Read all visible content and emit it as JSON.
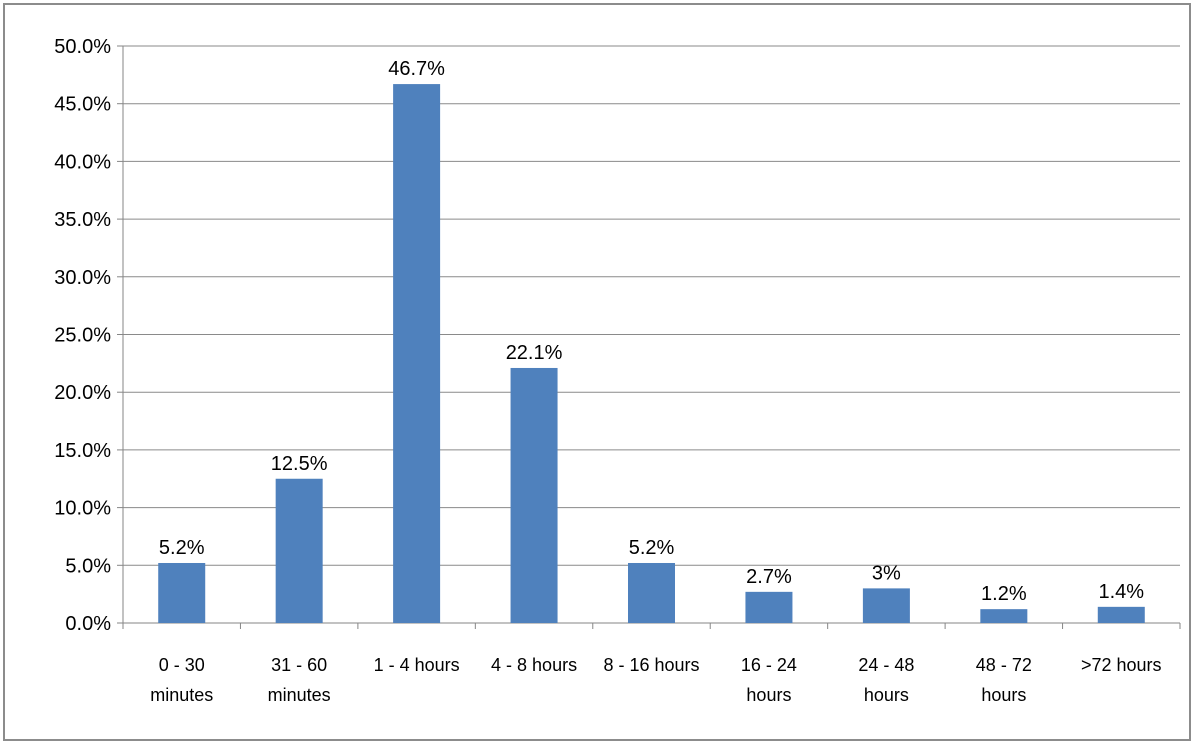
{
  "chart_data": {
    "type": "bar",
    "categories": [
      [
        "0 - 30",
        "minutes"
      ],
      [
        "31 - 60",
        "minutes"
      ],
      [
        "1 - 4 hours"
      ],
      [
        "4 - 8 hours"
      ],
      [
        "8 - 16 hours"
      ],
      [
        "16 - 24",
        "hours"
      ],
      [
        "24 - 48",
        "hours"
      ],
      [
        "48 - 72",
        "hours"
      ],
      [
        ">72 hours"
      ]
    ],
    "values": [
      5.2,
      12.5,
      46.7,
      22.1,
      5.2,
      2.7,
      3.0,
      1.2,
      1.4
    ],
    "data_labels": [
      "5.2%",
      "12.5%",
      "46.7%",
      "22.1%",
      "5.2%",
      "2.7%",
      "3%",
      "1.2%",
      "1.4%"
    ],
    "y_ticks": [
      "0.0%",
      "5.0%",
      "10.0%",
      "15.0%",
      "20.0%",
      "25.0%",
      "30.0%",
      "35.0%",
      "40.0%",
      "45.0%",
      "50.0%"
    ],
    "ylim": [
      0,
      50
    ],
    "grid": true,
    "legend": "none",
    "bar_color": "#4f81bd",
    "title": "",
    "xlabel": "",
    "ylabel": ""
  }
}
